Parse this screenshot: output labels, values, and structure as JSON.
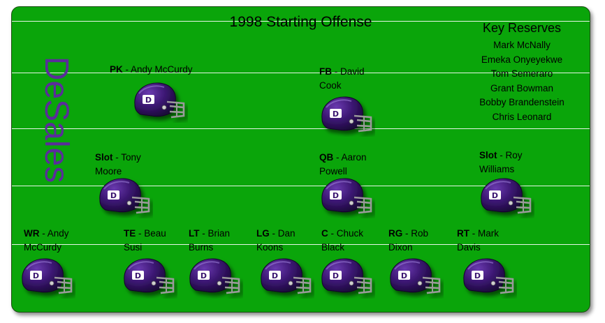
{
  "title": "1998 Starting Offense",
  "team": "DeSales",
  "reserves": {
    "heading": "Key Reserves",
    "names": [
      "Mark McNally",
      "Emeka Onyeyekwe",
      "Tom Semeraro",
      "Grant Bowman",
      "Bobby Brandenstein",
      "Chris Leonard"
    ]
  },
  "players": [
    {
      "pos": "PK",
      "sep": " - ",
      "line1": "Andy McCurdy",
      "line2": ""
    },
    {
      "pos": "FB",
      "sep": " - ",
      "line1": "David",
      "line2": "Cook"
    },
    {
      "pos": "Slot",
      "sep": " - ",
      "line1": "Tony",
      "line2": "Moore"
    },
    {
      "pos": "QB",
      "sep": " - ",
      "line1": "Aaron",
      "line2": "Powell"
    },
    {
      "pos": "Slot",
      "sep": " - ",
      "line1": "Roy",
      "line2": "Williams"
    },
    {
      "pos": "WR",
      "sep": " - ",
      "line1": "Andy",
      "line2": "McCurdy"
    },
    {
      "pos": "TE",
      "sep": " - ",
      "line1": "Beau",
      "line2": "Susi"
    },
    {
      "pos": "LT",
      "sep": " - ",
      "line1": "Brian",
      "line2": "Burns"
    },
    {
      "pos": "LG",
      "sep": " - ",
      "line1": "Dan",
      "line2": "Koons"
    },
    {
      "pos": "C",
      "sep": " - ",
      "line1": "Chuck",
      "line2": "Black"
    },
    {
      "pos": "RG",
      "sep": " - ",
      "line1": "Rob",
      "line2": "Dixon"
    },
    {
      "pos": "RT",
      "sep": " - ",
      "line1": "Mark",
      "line2": "Davis"
    }
  ],
  "colors": {
    "field": "#0aa50a",
    "helmet": "#3a1670",
    "team_text": "#5a2d9a"
  }
}
